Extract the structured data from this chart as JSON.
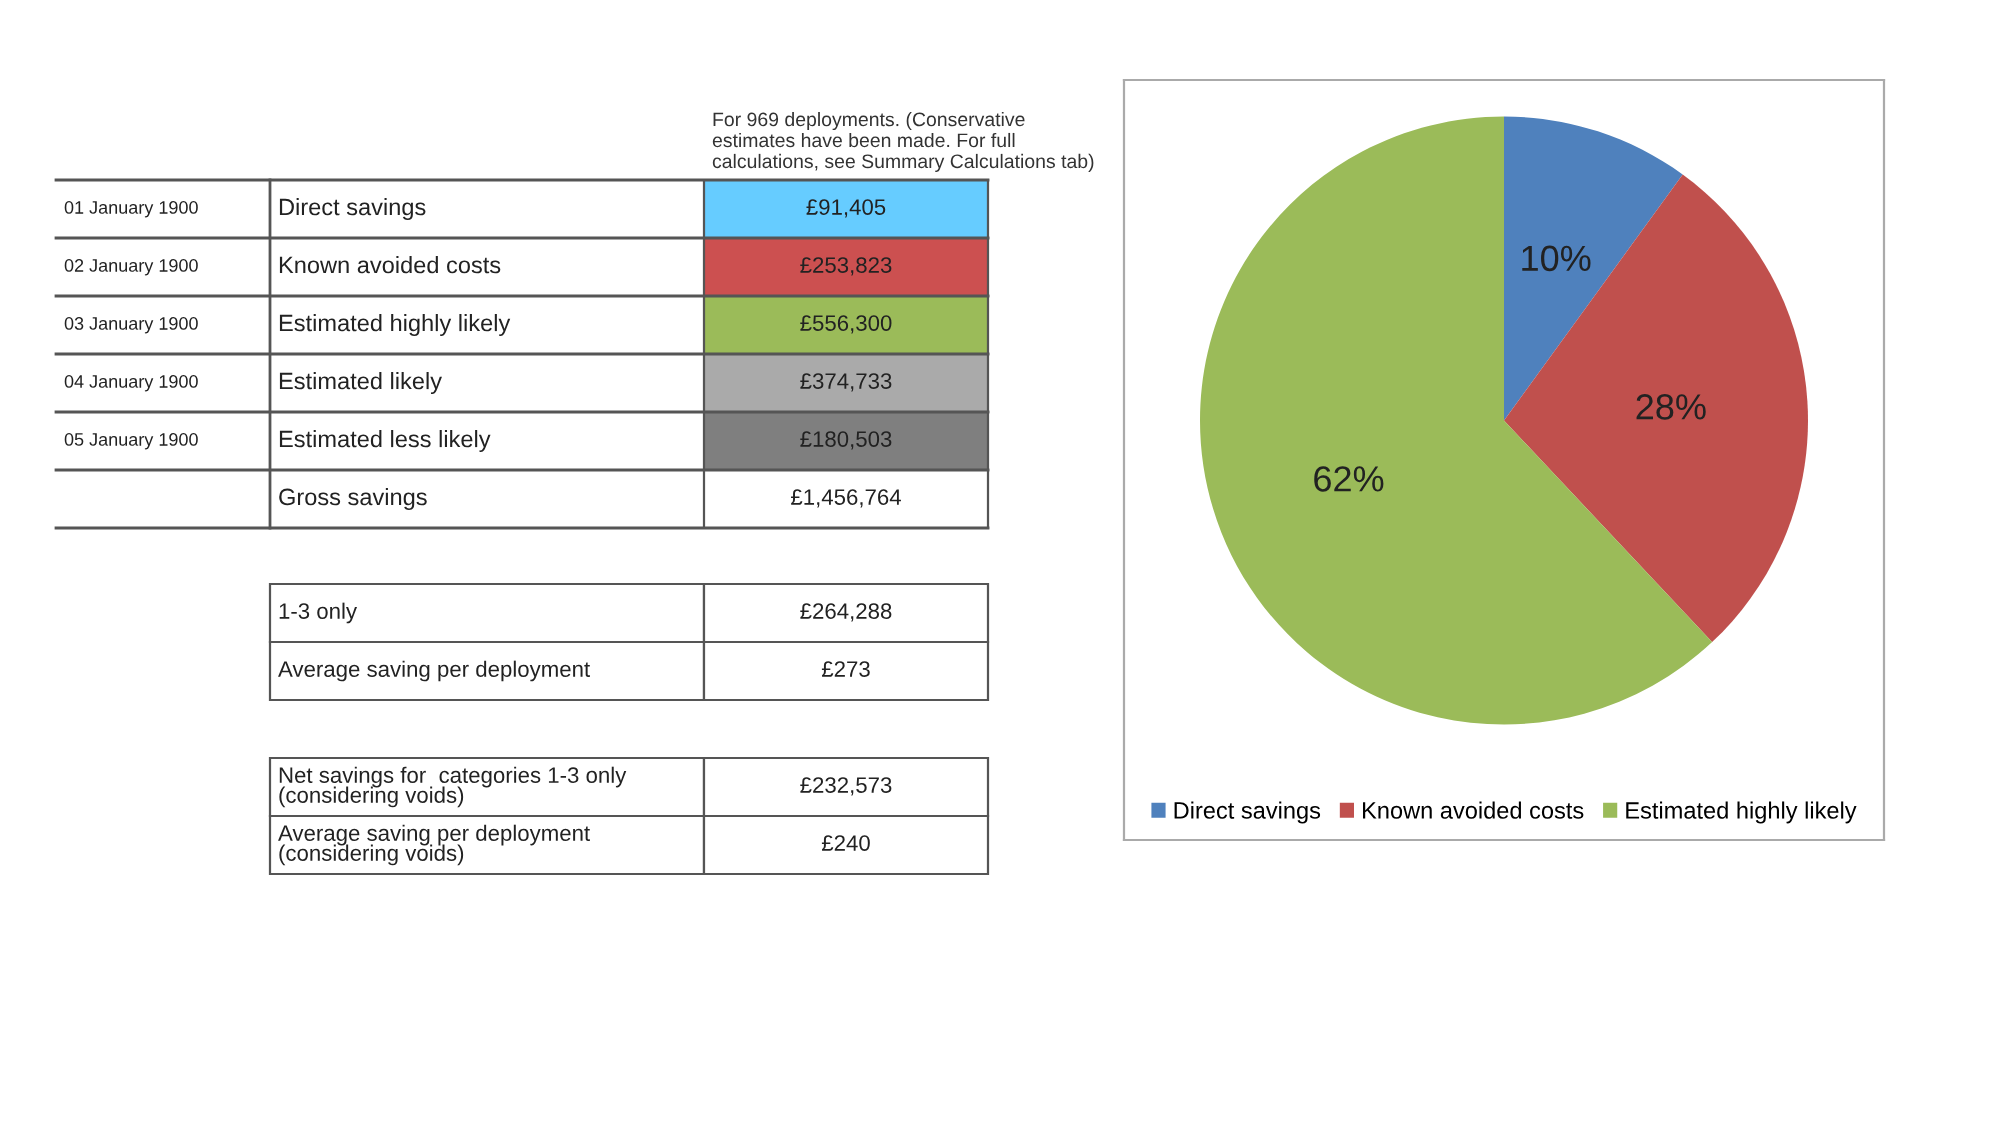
{
  "chart_data": [
    {
      "type": "other",
      "annotations": [
        "For 969 deployments. (Conservative estimates have been made. For full calculations, see Summary Calculations tab)",
        "01 January 1900",
        "Direct savings",
        "£91,405",
        "02 January 1900",
        "Known avoided costs",
        "£253,823",
        "03 January 1900",
        "Estimated highly likely",
        "£556,300",
        "04 January 1900",
        "Estimated likely",
        "£374,733",
        "05 January 1900",
        "Estimated less likely",
        "£180,503",
        "Gross savings",
        "£1,456,764",
        "1-3 only",
        "£264,288",
        "Average saving per deployment",
        "£273",
        "Net savings for  categories 1-3 only\n(considering voids)",
        "£232,573",
        "Average saving per deployment\n(considering voids)",
        "£240"
      ],
      "colors": [
        "#66ccff",
        "#cc5050",
        "#9bbb59",
        "#aaaaaa",
        "#7f7f7f"
      ]
    },
    {
      "type": "pie",
      "categories": [
        "Direct savings",
        "Known avoided costs",
        "Estimated highly likely"
      ],
      "values": [
        10,
        28,
        62
      ],
      "colors": [
        "#4f81bd",
        "#c0504d",
        "#9bbb59"
      ],
      "value_labels": [
        "10%",
        "28%",
        "62%"
      ],
      "legend": "bottom"
    }
  ]
}
